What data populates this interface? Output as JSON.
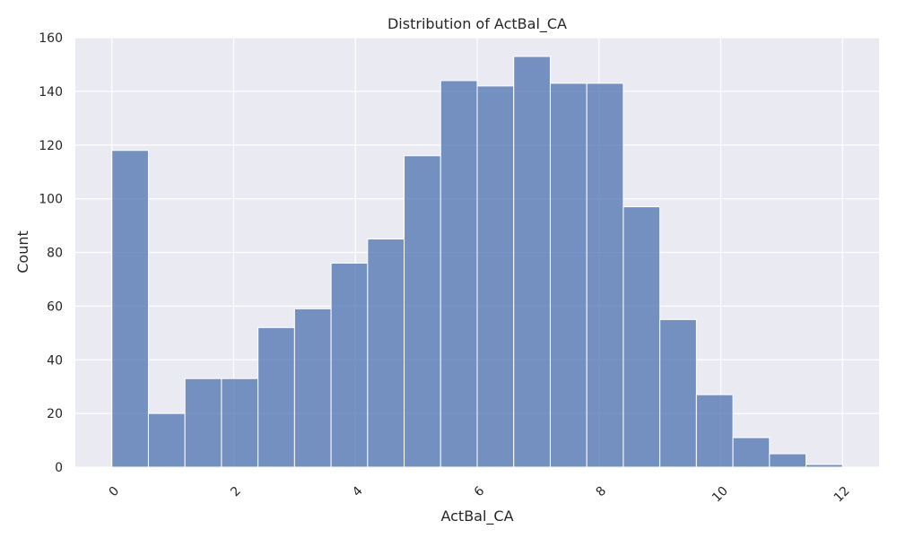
{
  "chart_data": {
    "type": "bar",
    "title": "Distribution of ActBal_CA",
    "xlabel": "ActBal_CA",
    "ylabel": "Count",
    "xlim": [
      -0.6,
      12.6
    ],
    "ylim": [
      0,
      160
    ],
    "xticks": [
      0,
      2,
      4,
      6,
      8,
      10,
      12
    ],
    "xtick_labels": [
      "0",
      "2",
      "4",
      "6",
      "8",
      "10",
      "12"
    ],
    "yticks": [
      0,
      20,
      40,
      60,
      80,
      100,
      120,
      140,
      160
    ],
    "ytick_labels": [
      "0",
      "20",
      "40",
      "60",
      "80",
      "100",
      "120",
      "140",
      "160"
    ],
    "bin_start": 0.0,
    "bin_width": 0.6,
    "values": [
      118,
      20,
      33,
      33,
      52,
      59,
      76,
      85,
      116,
      144,
      142,
      153,
      143,
      143,
      97,
      55,
      27,
      11,
      5,
      1
    ],
    "bar_color": "#4c72b0",
    "background_color": "#eaeaf2",
    "grid": true
  }
}
